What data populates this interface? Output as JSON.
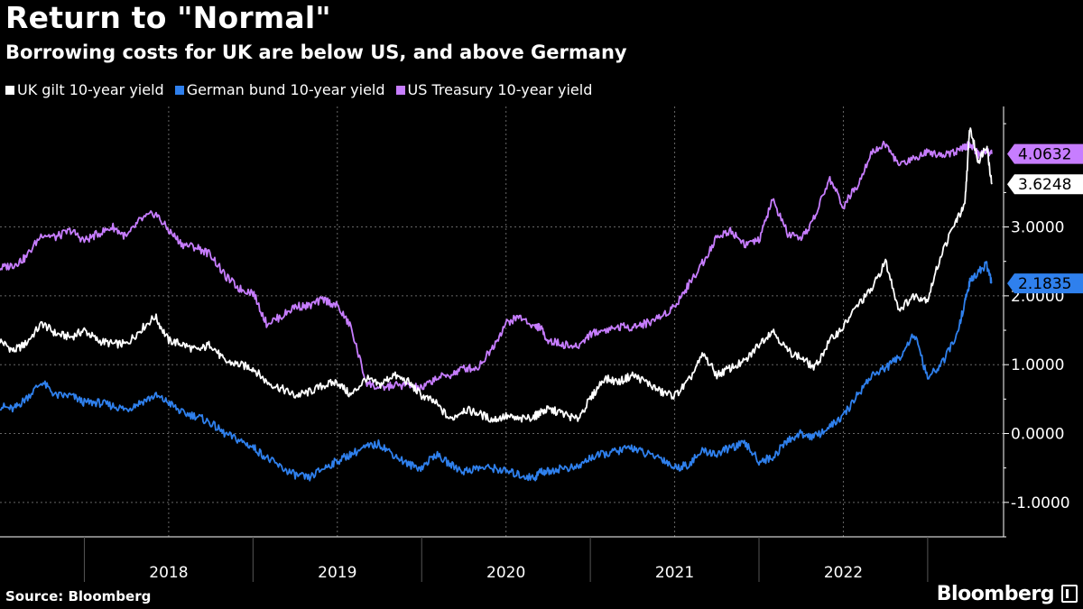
{
  "title": "Return to \"Normal\"",
  "subtitle": "Borrowing costs for UK are below US, and above Germany",
  "source": "Source: Bloomberg",
  "brand": "Bloomberg",
  "colors": {
    "uk": "#ffffff",
    "de": "#2f80ed",
    "us": "#c77dff",
    "background": "#000000"
  },
  "chart_data": {
    "type": "line",
    "title": "Return to \"Normal\"",
    "subtitle": "Borrowing costs for UK are below US, and above Germany",
    "xlabel": "",
    "ylabel": "",
    "ylim": [
      -1.5,
      4.75
    ],
    "xlim": [
      2017.0,
      2022.95
    ],
    "yticks": [
      -1,
      0,
      1,
      2,
      3
    ],
    "ytick_labels": [
      "-1.0000",
      "0.0000",
      "1.0000",
      "2.0000",
      "3.0000"
    ],
    "year_labels": [
      "2018",
      "2019",
      "2020",
      "2021",
      "2022"
    ],
    "grid": true,
    "legend_position": "top-left",
    "series": [
      {
        "name": "UK gilt 10-year yield",
        "color": "#ffffff",
        "last_value": "3.6248",
        "x": [
          2017.0,
          2017.08,
          2017.15,
          2017.25,
          2017.33,
          2017.42,
          2017.5,
          2017.58,
          2017.67,
          2017.75,
          2017.83,
          2017.92,
          2018.0,
          2018.08,
          2018.17,
          2018.25,
          2018.33,
          2018.42,
          2018.5,
          2018.58,
          2018.67,
          2018.75,
          2018.83,
          2018.92,
          2019.0,
          2019.08,
          2019.17,
          2019.25,
          2019.33,
          2019.42,
          2019.5,
          2019.58,
          2019.67,
          2019.75,
          2019.83,
          2019.92,
          2020.0,
          2020.08,
          2020.17,
          2020.2,
          2020.25,
          2020.33,
          2020.42,
          2020.5,
          2020.58,
          2020.67,
          2020.75,
          2020.83,
          2020.92,
          2021.0,
          2021.08,
          2021.17,
          2021.25,
          2021.33,
          2021.42,
          2021.5,
          2021.58,
          2021.67,
          2021.75,
          2021.83,
          2021.92,
          2022.0,
          2022.08,
          2022.17,
          2022.25,
          2022.33,
          2022.42,
          2022.5,
          2022.58,
          2022.67,
          2022.72,
          2022.75,
          2022.8,
          2022.85,
          2022.88
        ],
        "y": [
          1.35,
          1.2,
          1.3,
          1.6,
          1.45,
          1.4,
          1.5,
          1.35,
          1.3,
          1.3,
          1.5,
          1.7,
          1.35,
          1.3,
          1.2,
          1.3,
          1.05,
          1.0,
          0.95,
          0.75,
          0.65,
          0.55,
          0.6,
          0.7,
          0.75,
          0.55,
          0.8,
          0.7,
          0.85,
          0.75,
          0.55,
          0.45,
          0.2,
          0.35,
          0.3,
          0.2,
          0.25,
          0.2,
          0.25,
          0.3,
          0.35,
          0.3,
          0.2,
          0.5,
          0.8,
          0.75,
          0.85,
          0.75,
          0.6,
          0.55,
          0.75,
          1.15,
          0.85,
          0.95,
          1.05,
          1.3,
          1.5,
          1.2,
          1.1,
          0.95,
          1.35,
          1.55,
          1.85,
          2.1,
          2.5,
          1.8,
          2.0,
          1.95,
          2.6,
          3.1,
          3.3,
          4.45,
          3.95,
          4.2,
          3.62
        ]
      },
      {
        "name": "German bund 10-year yield",
        "color": "#2f80ed",
        "last_value": "2.1835",
        "x": [
          2017.0,
          2017.08,
          2017.15,
          2017.25,
          2017.33,
          2017.42,
          2017.5,
          2017.58,
          2017.67,
          2017.75,
          2017.83,
          2017.92,
          2018.0,
          2018.08,
          2018.17,
          2018.25,
          2018.33,
          2018.42,
          2018.5,
          2018.58,
          2018.67,
          2018.75,
          2018.83,
          2018.92,
          2019.0,
          2019.08,
          2019.17,
          2019.25,
          2019.33,
          2019.42,
          2019.5,
          2019.58,
          2019.67,
          2019.75,
          2019.83,
          2019.92,
          2020.0,
          2020.08,
          2020.17,
          2020.2,
          2020.25,
          2020.33,
          2020.42,
          2020.5,
          2020.58,
          2020.67,
          2020.75,
          2020.83,
          2020.92,
          2021.0,
          2021.08,
          2021.17,
          2021.25,
          2021.33,
          2021.42,
          2021.5,
          2021.58,
          2021.67,
          2021.75,
          2021.83,
          2021.92,
          2022.0,
          2022.08,
          2022.17,
          2022.25,
          2022.33,
          2022.42,
          2022.5,
          2022.58,
          2022.67,
          2022.72,
          2022.75,
          2022.8,
          2022.85,
          2022.88
        ],
        "y": [
          0.4,
          0.35,
          0.5,
          0.75,
          0.55,
          0.55,
          0.45,
          0.45,
          0.4,
          0.35,
          0.45,
          0.55,
          0.45,
          0.3,
          0.25,
          0.15,
          0.0,
          -0.1,
          -0.2,
          -0.35,
          -0.5,
          -0.6,
          -0.65,
          -0.5,
          -0.4,
          -0.3,
          -0.2,
          -0.15,
          -0.3,
          -0.45,
          -0.5,
          -0.3,
          -0.45,
          -0.55,
          -0.5,
          -0.5,
          -0.55,
          -0.6,
          -0.65,
          -0.55,
          -0.55,
          -0.5,
          -0.5,
          -0.35,
          -0.3,
          -0.25,
          -0.2,
          -0.3,
          -0.35,
          -0.5,
          -0.45,
          -0.25,
          -0.3,
          -0.2,
          -0.15,
          -0.4,
          -0.35,
          -0.1,
          0.0,
          -0.05,
          0.1,
          0.25,
          0.55,
          0.85,
          0.95,
          1.1,
          1.45,
          0.8,
          1.0,
          1.4,
          1.9,
          2.2,
          2.35,
          2.45,
          2.18
        ]
      },
      {
        "name": "US Treasury 10-year yield",
        "color": "#c77dff",
        "last_value": "4.0632",
        "x": [
          2017.0,
          2017.08,
          2017.15,
          2017.25,
          2017.33,
          2017.42,
          2017.5,
          2017.58,
          2017.67,
          2017.75,
          2017.83,
          2017.92,
          2018.0,
          2018.08,
          2018.17,
          2018.25,
          2018.33,
          2018.42,
          2018.5,
          2018.58,
          2018.67,
          2018.75,
          2018.83,
          2018.92,
          2019.0,
          2019.08,
          2019.17,
          2019.25,
          2019.33,
          2019.42,
          2019.5,
          2019.58,
          2019.67,
          2019.75,
          2019.83,
          2019.92,
          2020.0,
          2020.08,
          2020.17,
          2020.2,
          2020.25,
          2020.33,
          2020.42,
          2020.5,
          2020.58,
          2020.67,
          2020.75,
          2020.83,
          2020.92,
          2021.0,
          2021.08,
          2021.17,
          2021.25,
          2021.33,
          2021.42,
          2021.5,
          2021.58,
          2021.67,
          2021.75,
          2021.83,
          2021.92,
          2022.0,
          2022.08,
          2022.17,
          2022.25,
          2022.33,
          2022.42,
          2022.5,
          2022.58,
          2022.67,
          2022.72,
          2022.75,
          2022.8,
          2022.85,
          2022.88
        ],
        "y": [
          2.4,
          2.45,
          2.55,
          2.9,
          2.85,
          2.95,
          2.8,
          2.9,
          3.0,
          2.85,
          3.1,
          3.2,
          2.95,
          2.75,
          2.7,
          2.6,
          2.3,
          2.1,
          2.05,
          1.6,
          1.7,
          1.85,
          1.85,
          1.95,
          1.85,
          1.55,
          0.75,
          0.65,
          0.7,
          0.7,
          0.65,
          0.8,
          0.85,
          0.95,
          0.95,
          1.25,
          1.6,
          1.7,
          1.55,
          1.55,
          1.35,
          1.3,
          1.25,
          1.45,
          1.5,
          1.55,
          1.55,
          1.6,
          1.7,
          1.85,
          2.15,
          2.5,
          2.85,
          2.95,
          2.75,
          2.8,
          3.4,
          2.9,
          2.8,
          3.15,
          3.7,
          3.3,
          3.6,
          4.1,
          4.2,
          3.9,
          4.0,
          4.1,
          4.05,
          4.1,
          4.15,
          4.2,
          4.05,
          4.1,
          4.06
        ]
      }
    ]
  }
}
